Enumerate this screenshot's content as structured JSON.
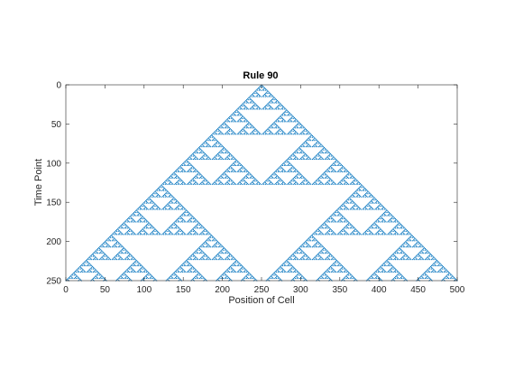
{
  "chart_data": {
    "type": "heatmap",
    "title": "Rule 90",
    "xlabel": "Position of Cell",
    "ylabel": "Time Point",
    "rule": 90,
    "num_cells": 501,
    "num_steps": 251,
    "initial_live_cell": 250,
    "xlim": [
      0,
      500
    ],
    "ylim": [
      0,
      250
    ],
    "y_reversed": true,
    "xticks": [
      0,
      50,
      100,
      150,
      200,
      250,
      300,
      350,
      400,
      450,
      500
    ],
    "yticks": [
      0,
      50,
      100,
      150,
      200,
      250
    ],
    "grid": false,
    "colors": {
      "cell": "#0072BD",
      "background": "#ffffff",
      "axes": "#262626"
    }
  }
}
